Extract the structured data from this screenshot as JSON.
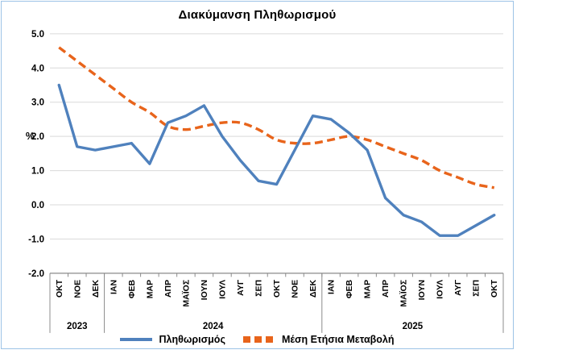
{
  "chart": {
    "frame_border_color": "#9DC3E6",
    "grid_color": "#D9D9D9",
    "axis_color": "#8C8C8C",
    "text_color": "#000000"
  },
  "chart_data": {
    "type": "line",
    "title": "Διακύμανση Πληθωρισμού",
    "ylabel": "%",
    "ylim": [
      -2.0,
      5.0
    ],
    "yticks": [
      "5.0",
      "4.0",
      "3.0",
      "2.0",
      "1.0",
      "0.0",
      "-1.0",
      "-2.0"
    ],
    "grid": true,
    "legend_position": "bottom",
    "categories": [
      "ΟΚΤ",
      "ΝΟΕ",
      "ΔΕΚ",
      "ΙΑΝ",
      "ΦΕΒ",
      "ΜΑΡ",
      "ΑΠΡ",
      "ΜΑΪΟΣ",
      "ΙΟΥΝ",
      "ΙΟΥΛ",
      "ΑΥΓ",
      "ΣΕΠ",
      "ΟΚΤ",
      "ΝΟΕ",
      "ΔΕΚ",
      "ΙΑΝ",
      "ΦΕΒ",
      "ΜΑΡ",
      "ΑΠΡ",
      "ΜΑΪΟΣ",
      "ΙΟΥΝ",
      "ΙΟΥΛ",
      "ΑΥΓ",
      "ΣΕΠ",
      "ΟΚΤ"
    ],
    "year_groups": [
      {
        "label": "2023",
        "count": 3
      },
      {
        "label": "2024",
        "count": 12
      },
      {
        "label": "2025",
        "count": 10
      }
    ],
    "series": [
      {
        "name": "Πληθωρισμός",
        "style": "solid",
        "color": "#4F81BD",
        "values": [
          3.5,
          1.7,
          1.6,
          1.7,
          1.8,
          1.2,
          2.4,
          2.6,
          2.9,
          2.0,
          1.3,
          0.7,
          0.6,
          1.6,
          2.6,
          2.5,
          2.1,
          1.6,
          0.2,
          -0.3,
          -0.5,
          -0.9,
          -0.9,
          -0.6,
          -0.3
        ]
      },
      {
        "name": "Μέση Ετήσια Μεταβολή",
        "style": "dashed",
        "color": "#E8641B",
        "values": [
          4.6,
          4.2,
          3.8,
          3.4,
          3.0,
          2.7,
          2.3,
          2.2,
          2.3,
          2.4,
          2.4,
          2.2,
          1.9,
          1.8,
          1.8,
          1.9,
          2.0,
          1.9,
          1.7,
          1.5,
          1.3,
          1.0,
          0.8,
          0.6,
          0.5
        ]
      }
    ]
  }
}
